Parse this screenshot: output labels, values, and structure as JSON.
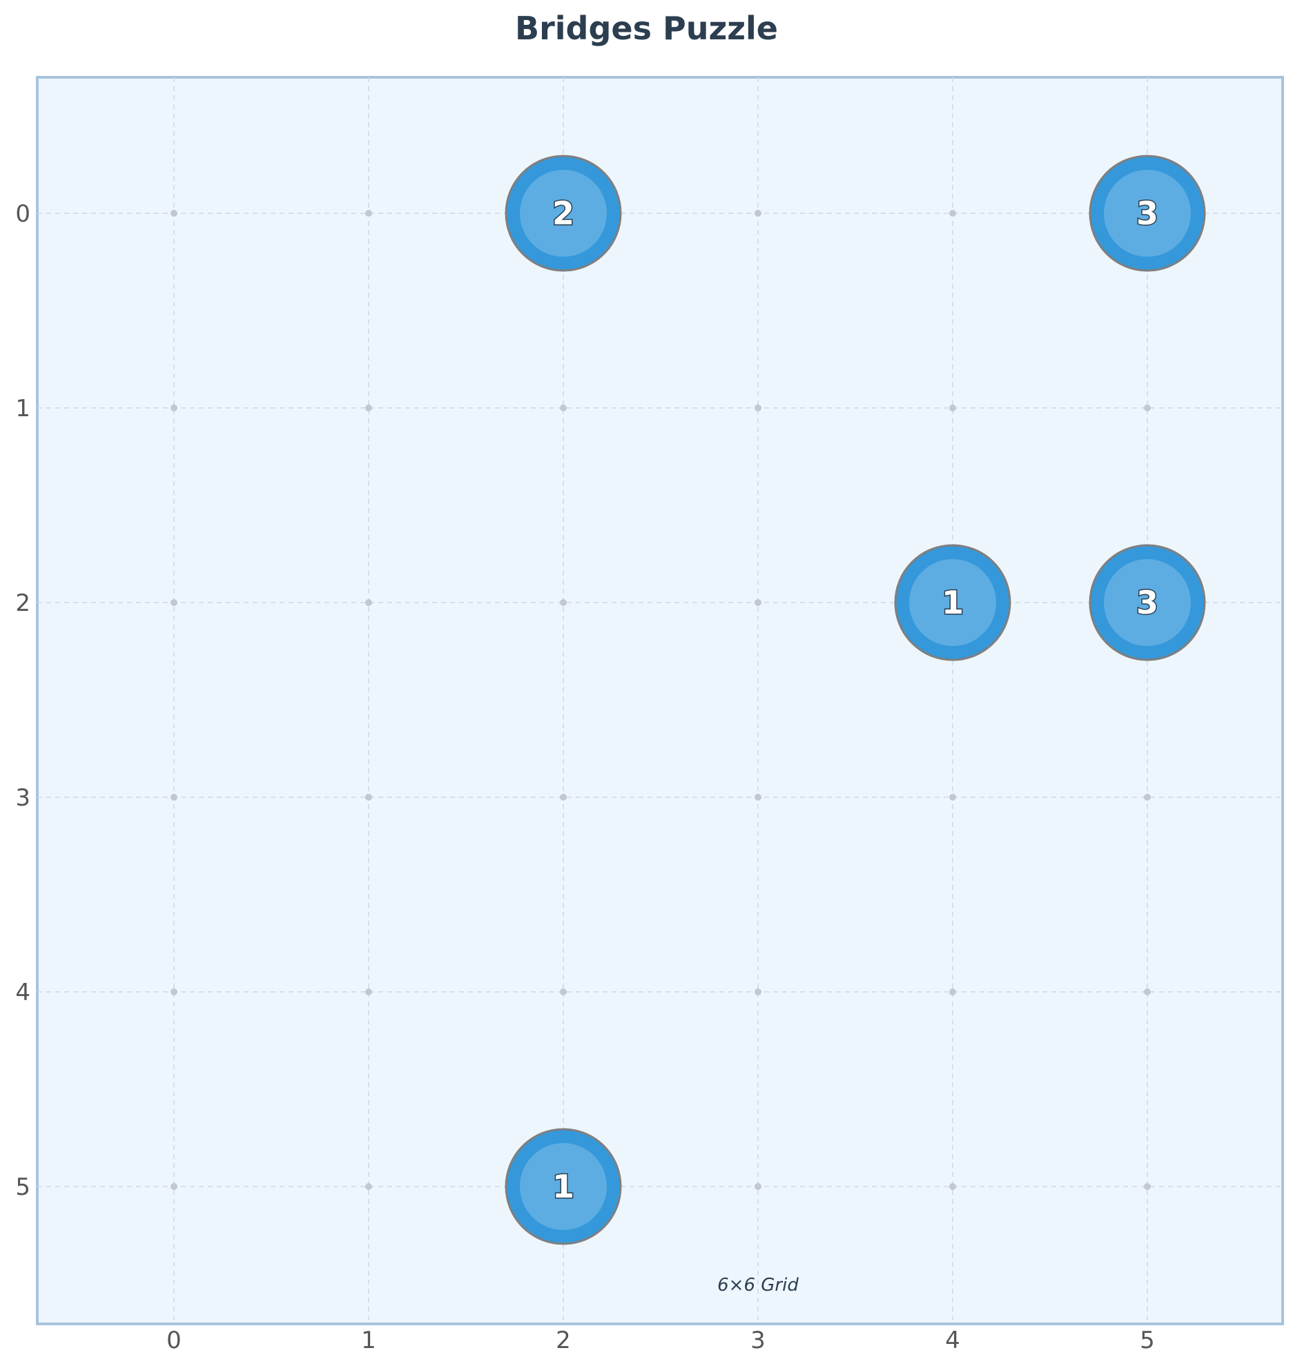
{
  "title": "Bridges Puzzle",
  "caption": "6×6 Grid",
  "grid": {
    "rows": 6,
    "cols": 6,
    "x_ticks": [
      "0",
      "1",
      "2",
      "3",
      "4",
      "5"
    ],
    "y_ticks": [
      "0",
      "1",
      "2",
      "3",
      "4",
      "5"
    ]
  },
  "islands": [
    {
      "row": 0,
      "col": 2,
      "value": "2"
    },
    {
      "row": 0,
      "col": 5,
      "value": "3"
    },
    {
      "row": 2,
      "col": 4,
      "value": "1"
    },
    {
      "row": 2,
      "col": 5,
      "value": "3"
    },
    {
      "row": 5,
      "col": 2,
      "value": "1"
    }
  ],
  "colors": {
    "board_bg": "#eef6fd",
    "board_border": "#a9c3dc",
    "grid_line": "#c9d9e6",
    "dot": "#c2c8ce",
    "island_outer": "#3498db",
    "island_inner": "#5dade2",
    "island_edge": "#7f7f7f",
    "title": "#2c3e50"
  }
}
